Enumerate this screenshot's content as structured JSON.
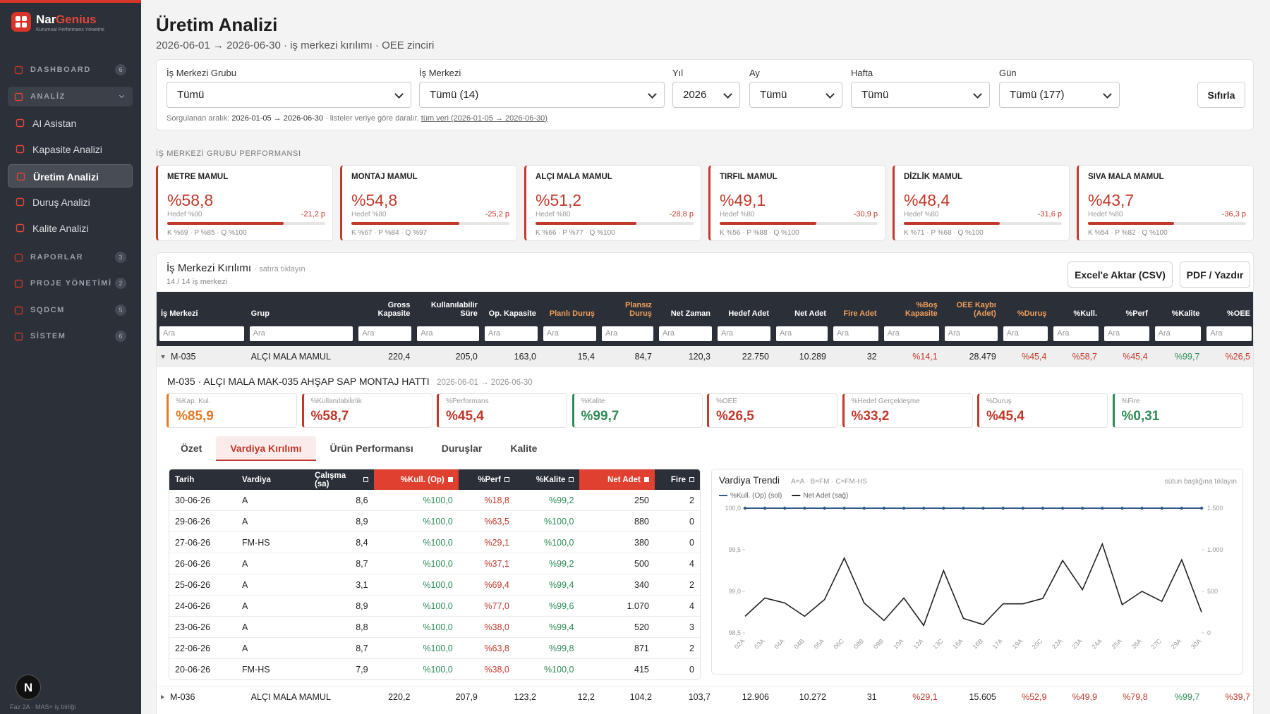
{
  "sidebar": {
    "brand_parts": [
      "Nar",
      "Genius"
    ],
    "tagline": "Kurumsal Performans Yönetimi",
    "sections": [
      {
        "label": "DASHBOARD",
        "badge": "6"
      },
      {
        "label": "ANALİZ",
        "open": true,
        "items": [
          {
            "label": "AI Asistan"
          },
          {
            "label": "Kapasite Analizi"
          },
          {
            "label": "Üretim Analizi",
            "active": true
          },
          {
            "label": "Duruş Analizi"
          },
          {
            "label": "Kalite Analizi"
          }
        ]
      },
      {
        "label": "RAPORLAR",
        "badge": "3"
      },
      {
        "label": "PROJE YÖNETİMİ",
        "badge": "2"
      },
      {
        "label": "SQDCM",
        "badge": "5"
      },
      {
        "label": "SİSTEM",
        "badge": "6"
      }
    ],
    "avatar": "N",
    "footer": "Faz 2A · MAS+ iş birliği"
  },
  "header": {
    "title": "Üretim Analizi",
    "subtitle": "2026-06-01 → 2026-06-30 · iş merkezi kırılımı · OEE zinciri"
  },
  "filters": {
    "fields": [
      {
        "label": "İş Merkezi Grubu",
        "value": "Tümü"
      },
      {
        "label": "İş Merkezi",
        "value": "Tümü (14)"
      },
      {
        "label": "Yıl",
        "value": "2026"
      },
      {
        "label": "Ay",
        "value": "Tümü"
      },
      {
        "label": "Hafta",
        "value": "Tümü"
      },
      {
        "label": "Gün",
        "value": "Tümü (177)"
      }
    ],
    "reset": "Sıfırla",
    "note_prefix": "Sorgulanan aralık:",
    "note_range": "2026-01-05 → 2026-06-30",
    "note_suffix": "· listeler veriye göre daralır.",
    "note_link": "tüm veri (2026-01-05 → 2026-06-30)"
  },
  "groups": {
    "title": "İŞ MERKEZİ GRUBU PERFORMANSI",
    "cards": [
      {
        "name": "METRE MAMUL",
        "value": 58.8,
        "value_label": "%58,8",
        "target": 80,
        "target_label": "Hedef %80",
        "delta": "-21,2 p",
        "breakdown": "K %69 · P %85 · Q %100"
      },
      {
        "name": "MONTAJ MAMUL",
        "value": 54.8,
        "value_label": "%54,8",
        "target": 80,
        "target_label": "Hedef %80",
        "delta": "-25,2 p",
        "breakdown": "K %67 · P %84 · Q %97"
      },
      {
        "name": "ALÇI MALA MAMUL",
        "value": 51.2,
        "value_label": "%51,2",
        "target": 80,
        "target_label": "Hedef %80",
        "delta": "-28,8 p",
        "breakdown": "K %66 · P %77 · Q %100"
      },
      {
        "name": "TIRFIL MAMUL",
        "value": 49.1,
        "value_label": "%49,1",
        "target": 80,
        "target_label": "Hedef %80",
        "delta": "-30,9 p",
        "breakdown": "K %56 · P %88 · Q %100"
      },
      {
        "name": "DİZLİK MAMUL",
        "value": 48.4,
        "value_label": "%48,4",
        "target": 80,
        "target_label": "Hedef %80",
        "delta": "-31,6 p",
        "breakdown": "K %71 · P %68 · Q %100"
      },
      {
        "name": "SIVA MALA MAMUL",
        "value": 43.7,
        "value_label": "%43,7",
        "target": 80,
        "target_label": "Hedef %80",
        "delta": "-36,3 p",
        "breakdown": "K %54 · P %82 · Q %100"
      }
    ]
  },
  "table": {
    "title": "İş Merkezi Kırılımı",
    "hint": "· satıra tıklayın",
    "count": "14 / 14 iş merkezi",
    "actions": [
      "Excel'e Aktar (CSV)",
      "PDF / Yazdır"
    ],
    "filter_placeholder": "Ara",
    "columns": [
      {
        "label": "İş Merkezi"
      },
      {
        "label": "Grup"
      },
      {
        "label": "Gross Kapasite"
      },
      {
        "label": "Kullanılabilir Süre"
      },
      {
        "label": "Op. Kapasite"
      },
      {
        "label": "Planlı Duruş",
        "accent": true
      },
      {
        "label": "Plansız Duruş",
        "accent": true
      },
      {
        "label": "Net Zaman"
      },
      {
        "label": "Hedef Adet"
      },
      {
        "label": "Net Adet"
      },
      {
        "label": "Fire Adet",
        "accent": true
      },
      {
        "label": "%Boş Kapasite",
        "accent": true,
        "color": "red"
      },
      {
        "label": "OEE Kaybı (Adet)",
        "accent": true
      },
      {
        "label": "%Duruş",
        "accent": true,
        "color": "red"
      },
      {
        "label": "%Kull.",
        "color": "red"
      },
      {
        "label": "%Perf",
        "color": "red"
      },
      {
        "label": "%Kalite",
        "color": "green"
      },
      {
        "label": "%OEE",
        "color": "red"
      }
    ],
    "rows": [
      {
        "expanded": true,
        "cells": [
          "M-035",
          "ALÇI MALA MAMUL",
          "220,4",
          "205,0",
          "163,0",
          "15,4",
          "84,7",
          "120,3",
          "22.750",
          "10.289",
          "32",
          "%14,1",
          "28.479",
          "%45,4",
          "%58,7",
          "%45,4",
          "%99,7",
          "%26,5"
        ]
      },
      {
        "expanded": false,
        "cells": [
          "M-036",
          "ALÇI MALA MAMUL",
          "220,2",
          "207,9",
          "123,2",
          "12,2",
          "104,2",
          "103,7",
          "12.906",
          "10.272",
          "31",
          "%29,1",
          "15.605",
          "%52,9",
          "%49,9",
          "%79,8",
          "%99,7",
          "%39,7"
        ]
      }
    ]
  },
  "detail": {
    "title": "M-035 · ALÇI MALA MAK-035 AHŞAP SAP MONTAJ HATTI",
    "range": "2026-06-01 → 2026-06-30",
    "kpis": [
      {
        "label": "%Kap. Kul.",
        "value": "%85,9",
        "tone": "orange"
      },
      {
        "label": "%Kullanılabilirlik",
        "value": "%58,7",
        "tone": "red"
      },
      {
        "label": "%Performans",
        "value": "%45,4",
        "tone": "red"
      },
      {
        "label": "%Kalite",
        "value": "%99,7",
        "tone": "green"
      },
      {
        "label": "%OEE",
        "value": "%26,5",
        "tone": "red"
      },
      {
        "label": "%Hedef Gerçekleşme",
        "value": "%33,2",
        "tone": "red"
      },
      {
        "label": "%Duruş",
        "value": "%45,4",
        "tone": "red"
      },
      {
        "label": "%Fire",
        "value": "%0,31",
        "tone": "green"
      }
    ],
    "tabs": [
      {
        "label": "Özet"
      },
      {
        "label": "Vardiya Kırılımı",
        "active": true
      },
      {
        "label": "Ürün Performansı"
      },
      {
        "label": "Duruşlar"
      },
      {
        "label": "Kalite"
      }
    ],
    "shift_table": {
      "columns": [
        {
          "label": "Tarih"
        },
        {
          "label": "Vardiya"
        },
        {
          "label": "Çalışma (sa)",
          "sortable": true
        },
        {
          "label": "%Kull. (Op)",
          "sortable": true,
          "sorted": true,
          "color": "green"
        },
        {
          "label": "%Perf",
          "sortable": true,
          "color": "red"
        },
        {
          "label": "%Kalite",
          "sortable": true,
          "color": "green"
        },
        {
          "label": "Net Adet",
          "sortable": true,
          "sorted": true
        },
        {
          "label": "Fire",
          "sortable": true
        }
      ],
      "rows": [
        [
          "30-06-26",
          "A",
          "8,6",
          "%100,0",
          "%18,8",
          "%99,2",
          "250",
          "2"
        ],
        [
          "29-06-26",
          "A",
          "8,9",
          "%100,0",
          "%63,5",
          "%100,0",
          "880",
          "0"
        ],
        [
          "27-06-26",
          "FM-HS",
          "8,4",
          "%100,0",
          "%29,1",
          "%100,0",
          "380",
          "0"
        ],
        [
          "26-06-26",
          "A",
          "8,7",
          "%100,0",
          "%37,1",
          "%99,2",
          "500",
          "4"
        ],
        [
          "25-06-26",
          "A",
          "3,1",
          "%100,0",
          "%69,4",
          "%99,4",
          "340",
          "2"
        ],
        [
          "24-06-26",
          "A",
          "8,9",
          "%100,0",
          "%77,0",
          "%99,6",
          "1.070",
          "4"
        ],
        [
          "23-06-26",
          "A",
          "8,8",
          "%100,0",
          "%38,0",
          "%99,4",
          "520",
          "3"
        ],
        [
          "22-06-26",
          "A",
          "8,7",
          "%100,0",
          "%63,8",
          "%99,8",
          "871",
          "2"
        ],
        [
          "20-06-26",
          "FM-HS",
          "7,9",
          "%100,0",
          "%38,0",
          "%100,0",
          "415",
          "0"
        ]
      ]
    }
  },
  "chart_data": {
    "type": "line",
    "title": "Vardiya Trendi",
    "subtitle": "A=A · B=FM · C=FM-HS",
    "note": "sütun başlığına tıklayın",
    "categories": [
      "02A",
      "03A",
      "04A",
      "04B",
      "05A",
      "06C",
      "08B",
      "09B",
      "10A",
      "12A",
      "13C",
      "16A",
      "16B",
      "17A",
      "19A",
      "20C",
      "22A",
      "23A",
      "24A",
      "25A",
      "26A",
      "27C",
      "29A",
      "30A"
    ],
    "series": [
      {
        "name": "%Kull. (Op) (sol)",
        "color": "#2f5b8a",
        "values": [
          100,
          100,
          100,
          100,
          100,
          100,
          100,
          100,
          100,
          100,
          100,
          100,
          100,
          100,
          100,
          100,
          100,
          100,
          100,
          100,
          100,
          100,
          100,
          100
        ]
      },
      {
        "name": "Net Adet (sağ)",
        "color": "#222222",
        "axis": "y2",
        "values": [
          200,
          420,
          360,
          200,
          400,
          900,
          360,
          150,
          420,
          90,
          750,
          175,
          100,
          350,
          350,
          415,
          871,
          520,
          1070,
          340,
          500,
          380,
          880,
          250
        ]
      }
    ],
    "ylim": [
      98.5,
      100
    ],
    "yticks": [
      {
        "value": 98.5,
        "label": "98,5"
      },
      {
        "value": 99,
        "label": "99,0"
      },
      {
        "value": 99.5,
        "label": "99,5"
      },
      {
        "value": 100,
        "label": "100,0"
      }
    ],
    "y2lim": [
      0,
      1500
    ],
    "y2ticks": [
      0,
      500,
      {
        "value": 1000,
        "label": "1.000"
      },
      {
        "value": 1500,
        "label": "1.500"
      }
    ]
  }
}
